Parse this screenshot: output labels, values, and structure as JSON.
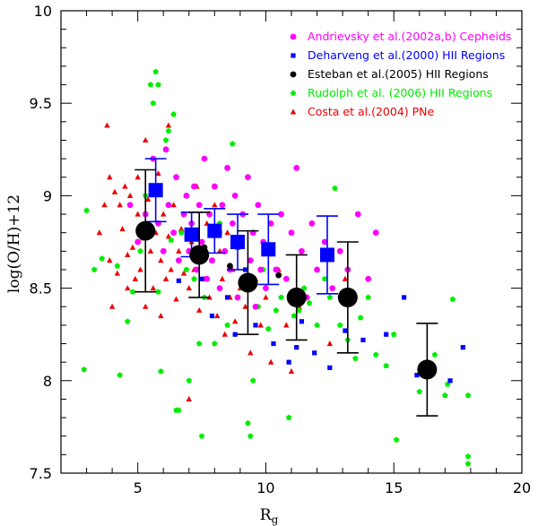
{
  "chart_data": {
    "type": "scatter",
    "xlabel": "R",
    "xlabel_sub": "g",
    "ylabel": "log(O/H)+12",
    "xlim": [
      2,
      20
    ],
    "ylim": [
      7.5,
      10
    ],
    "x_ticks": [
      5,
      10,
      15,
      20
    ],
    "y_ticks": [
      7.5,
      8,
      8.5,
      9,
      9.5,
      10
    ],
    "legend": [
      {
        "label": "Andrievsky et al.(2002a,b) Cepheids",
        "color": "#ff00ff",
        "marker": "circle"
      },
      {
        "label": "Deharveng et al.(2000) HII Regions",
        "color": "#0000ff",
        "marker": "square"
      },
      {
        "label": "Esteban et al.(2005) HII Regions",
        "color": "#000000",
        "marker": "circle"
      },
      {
        "label": "Rudolph et al. (2006) HII Regions",
        "color": "#00ee00",
        "marker": "pentagon"
      },
      {
        "label": "Costa et al.(2004) PNe",
        "color": "#ee0000",
        "marker": "triangle"
      }
    ],
    "series": [
      {
        "name": "Andrievsky et al.(2002a,b) Cepheids",
        "points": [
          [
            4.7,
            8.95
          ],
          [
            5.0,
            8.75
          ],
          [
            5.3,
            8.9
          ],
          [
            5.6,
            9.2
          ],
          [
            5.8,
            8.85
          ],
          [
            6.0,
            8.7
          ],
          [
            6.1,
            9.25
          ],
          [
            6.2,
            8.95
          ],
          [
            6.4,
            8.8
          ],
          [
            6.5,
            9.1
          ],
          [
            6.6,
            8.65
          ],
          [
            6.8,
            8.9
          ],
          [
            6.9,
            9.0
          ],
          [
            7.0,
            8.7
          ],
          [
            7.1,
            8.85
          ],
          [
            7.2,
            9.05
          ],
          [
            7.3,
            8.6
          ],
          [
            7.4,
            8.95
          ],
          [
            7.5,
            8.75
          ],
          [
            7.6,
            9.2
          ],
          [
            7.7,
            8.55
          ],
          [
            7.8,
            8.9
          ],
          [
            7.9,
            8.65
          ],
          [
            8.0,
            9.05
          ],
          [
            8.1,
            8.8
          ],
          [
            8.2,
            8.5
          ],
          [
            8.3,
            8.95
          ],
          [
            8.4,
            8.7
          ],
          [
            8.5,
            9.15
          ],
          [
            8.6,
            8.6
          ],
          [
            8.7,
            8.85
          ],
          [
            8.8,
            9.0
          ],
          [
            8.9,
            8.45
          ],
          [
            9.0,
            8.75
          ],
          [
            9.1,
            8.9
          ],
          [
            9.2,
            8.55
          ],
          [
            9.3,
            9.1
          ],
          [
            9.4,
            8.65
          ],
          [
            9.5,
            8.8
          ],
          [
            9.6,
            8.4
          ],
          [
            9.7,
            8.95
          ],
          [
            9.8,
            8.6
          ],
          [
            9.9,
            8.75
          ],
          [
            10.0,
            8.5
          ],
          [
            10.2,
            8.85
          ],
          [
            10.4,
            8.6
          ],
          [
            10.6,
            8.9
          ],
          [
            10.8,
            8.55
          ],
          [
            11.0,
            8.8
          ],
          [
            11.2,
            9.15
          ],
          [
            11.4,
            8.7
          ],
          [
            11.6,
            8.45
          ],
          [
            11.8,
            8.85
          ],
          [
            12.0,
            8.6
          ],
          [
            12.3,
            8.75
          ],
          [
            12.6,
            8.5
          ],
          [
            12.9,
            8.7
          ],
          [
            13.2,
            8.6
          ],
          [
            13.6,
            8.9
          ],
          [
            14.0,
            8.55
          ],
          [
            14.3,
            8.8
          ]
        ]
      },
      {
        "name": "Deharveng et al.(2000) HII Regions",
        "points": [
          [
            6.6,
            8.54
          ],
          [
            7.5,
            8.55
          ],
          [
            7.9,
            8.35
          ],
          [
            8.2,
            8.8
          ],
          [
            8.5,
            8.45
          ],
          [
            8.8,
            8.25
          ],
          [
            9.2,
            8.6
          ],
          [
            9.6,
            8.3
          ],
          [
            10.3,
            8.2
          ],
          [
            10.9,
            8.1
          ],
          [
            11.2,
            8.18
          ],
          [
            11.4,
            8.32
          ],
          [
            11.9,
            8.15
          ],
          [
            12.5,
            8.07
          ],
          [
            13.1,
            8.27
          ],
          [
            13.8,
            8.22
          ],
          [
            14.7,
            8.25
          ],
          [
            15.4,
            8.45
          ],
          [
            15.9,
            8.03
          ],
          [
            16.4,
            8.04
          ],
          [
            17.2,
            8.0
          ],
          [
            17.7,
            8.18
          ]
        ]
      },
      {
        "name": "Esteban et al.(2005) HII Regions",
        "points": [
          [
            7.6,
            8.72
          ],
          [
            8.6,
            8.62
          ],
          [
            10.5,
            8.57
          ]
        ]
      },
      {
        "name": "Rudolph et al. (2006) HII Regions",
        "points": [
          [
            3.0,
            8.92
          ],
          [
            2.9,
            8.06
          ],
          [
            3.3,
            8.6
          ],
          [
            3.6,
            8.66
          ],
          [
            4.2,
            8.62
          ],
          [
            4.3,
            8.03
          ],
          [
            4.6,
            8.32
          ],
          [
            4.8,
            8.48
          ],
          [
            5.1,
            8.7
          ],
          [
            5.3,
            9.0
          ],
          [
            5.5,
            9.6
          ],
          [
            5.7,
            9.67
          ],
          [
            5.8,
            9.6
          ],
          [
            5.6,
            9.5
          ],
          [
            5.9,
            8.05
          ],
          [
            5.8,
            8.48
          ],
          [
            6.1,
            9.3
          ],
          [
            6.2,
            9.35
          ],
          [
            6.3,
            8.76
          ],
          [
            6.4,
            9.44
          ],
          [
            6.5,
            7.84
          ],
          [
            6.6,
            7.84
          ],
          [
            6.7,
            8.8
          ],
          [
            6.9,
            8.6
          ],
          [
            7.0,
            8.0
          ],
          [
            7.2,
            8.55
          ],
          [
            7.4,
            8.2
          ],
          [
            7.5,
            7.7
          ],
          [
            7.6,
            8.45
          ],
          [
            7.8,
            8.9
          ],
          [
            8.0,
            8.2
          ],
          [
            8.2,
            8.85
          ],
          [
            8.5,
            8.3
          ],
          [
            8.7,
            9.28
          ],
          [
            8.9,
            8.75
          ],
          [
            9.1,
            8.5
          ],
          [
            9.3,
            7.77
          ],
          [
            9.4,
            7.7
          ],
          [
            9.5,
            8.0
          ],
          [
            9.7,
            8.4
          ],
          [
            9.9,
            8.6
          ],
          [
            10.1,
            8.28
          ],
          [
            10.4,
            8.38
          ],
          [
            10.6,
            8.45
          ],
          [
            10.9,
            7.8
          ],
          [
            11.1,
            8.35
          ],
          [
            11.3,
            8.38
          ],
          [
            11.5,
            8.5
          ],
          [
            11.7,
            8.42
          ],
          [
            12.0,
            8.3
          ],
          [
            12.3,
            8.55
          ],
          [
            12.5,
            8.45
          ],
          [
            12.7,
            9.04
          ],
          [
            12.9,
            8.3
          ],
          [
            13.2,
            8.22
          ],
          [
            13.5,
            8.12
          ],
          [
            13.7,
            8.34
          ],
          [
            14.0,
            8.45
          ],
          [
            14.3,
            8.14
          ],
          [
            14.7,
            8.08
          ],
          [
            15.0,
            8.25
          ],
          [
            15.1,
            7.68
          ],
          [
            16.0,
            7.94
          ],
          [
            16.6,
            8.14
          ],
          [
            17.0,
            7.92
          ],
          [
            17.1,
            7.98
          ],
          [
            17.3,
            8.44
          ],
          [
            17.9,
            7.59
          ],
          [
            17.9,
            7.55
          ],
          [
            17.9,
            7.92
          ]
        ]
      },
      {
        "name": "Costa et al.(2004) PNe",
        "points": [
          [
            3.5,
            8.8
          ],
          [
            3.7,
            8.95
          ],
          [
            3.8,
            9.38
          ],
          [
            3.9,
            9.1
          ],
          [
            3.9,
            8.65
          ],
          [
            4.0,
            8.4
          ],
          [
            4.1,
            9.02
          ],
          [
            4.2,
            8.58
          ],
          [
            4.3,
            8.95
          ],
          [
            4.4,
            8.82
          ],
          [
            4.5,
            9.05
          ],
          [
            4.6,
            8.68
          ],
          [
            4.6,
            8.5
          ],
          [
            4.7,
            9.0
          ],
          [
            4.8,
            8.72
          ],
          [
            4.9,
            8.55
          ],
          [
            5.0,
            9.1
          ],
          [
            5.0,
            8.9
          ],
          [
            5.1,
            8.6
          ],
          [
            5.2,
            8.77
          ],
          [
            5.3,
            9.3
          ],
          [
            5.3,
            8.4
          ],
          [
            5.4,
            8.98
          ],
          [
            5.5,
            8.7
          ],
          [
            5.6,
            8.5
          ],
          [
            5.7,
            8.8
          ],
          [
            5.8,
            9.12
          ],
          [
            5.9,
            8.35
          ],
          [
            5.9,
            8.65
          ],
          [
            6.0,
            8.9
          ],
          [
            6.1,
            8.55
          ],
          [
            6.2,
            8.78
          ],
          [
            6.2,
            9.38
          ],
          [
            6.3,
            8.6
          ],
          [
            6.4,
            8.95
          ],
          [
            6.5,
            8.44
          ],
          [
            6.6,
            8.7
          ],
          [
            6.7,
            8.82
          ],
          [
            6.8,
            8.58
          ],
          [
            6.9,
            9.0
          ],
          [
            7.0,
            8.5
          ],
          [
            7.0,
            7.9
          ],
          [
            7.1,
            8.75
          ],
          [
            7.2,
            8.6
          ],
          [
            7.3,
            9.05
          ],
          [
            7.4,
            8.38
          ],
          [
            7.5,
            8.7
          ],
          [
            7.6,
            8.55
          ],
          [
            7.7,
            8.85
          ],
          [
            7.8,
            8.45
          ],
          [
            7.9,
            8.65
          ],
          [
            8.0,
            8.95
          ],
          [
            8.1,
            8.35
          ],
          [
            8.2,
            8.7
          ],
          [
            8.3,
            8.55
          ],
          [
            8.4,
            8.25
          ],
          [
            8.5,
            8.8
          ],
          [
            8.6,
            8.45
          ],
          [
            8.7,
            8.6
          ],
          [
            8.8,
            8.32
          ],
          [
            8.9,
            8.72
          ],
          [
            9.0,
            8.5
          ],
          [
            9.2,
            8.4
          ],
          [
            9.4,
            8.15
          ],
          [
            9.6,
            8.55
          ],
          [
            9.8,
            8.3
          ],
          [
            10.0,
            8.45
          ],
          [
            10.2,
            8.1
          ],
          [
            10.5,
            8.6
          ],
          [
            10.8,
            8.3
          ],
          [
            11.0,
            8.05
          ],
          [
            11.3,
            8.4
          ],
          [
            12.5,
            8.2
          ],
          [
            13.1,
            8.55
          ]
        ]
      }
    ],
    "binned_means": [
      {
        "name": "Deharveng et al.(2000) HII Regions",
        "color": "#0000ff",
        "marker": "square",
        "points": [
          {
            "x": 5.7,
            "y": 9.03,
            "err": 0.17
          },
          {
            "x": 7.1,
            "y": 8.79,
            "err": 0.12
          },
          {
            "x": 8.0,
            "y": 8.81,
            "err": 0.12
          },
          {
            "x": 8.9,
            "y": 8.75,
            "err": 0.15
          },
          {
            "x": 10.1,
            "y": 8.71,
            "err": 0.19
          },
          {
            "x": 12.4,
            "y": 8.68,
            "err": 0.21
          }
        ]
      },
      {
        "name": "Esteban et al.(2005) HII Regions",
        "color": "#000000",
        "marker": "circle",
        "points": [
          {
            "x": 5.3,
            "y": 8.81,
            "err": 0.33
          },
          {
            "x": 7.4,
            "y": 8.68,
            "err": 0.23
          },
          {
            "x": 9.3,
            "y": 8.53,
            "err": 0.28
          },
          {
            "x": 11.2,
            "y": 8.45,
            "err": 0.23
          },
          {
            "x": 13.2,
            "y": 8.45,
            "err": 0.3
          },
          {
            "x": 16.3,
            "y": 8.06,
            "err": 0.25
          }
        ]
      }
    ]
  }
}
